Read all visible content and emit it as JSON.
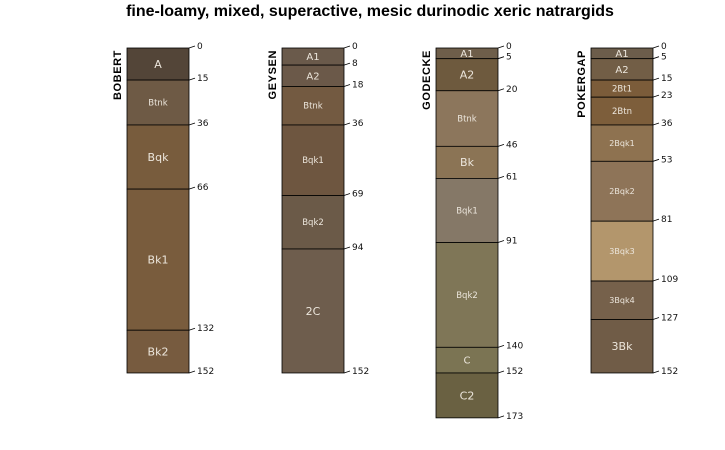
{
  "chart_data": {
    "type": "soil-profile-sketch",
    "title": "fine-loamy, mixed, superactive, mesic durinodic xeric natrargids",
    "depth_units": "cm",
    "depth_range": [
      0,
      173
    ],
    "profiles": [
      {
        "name": "BOBERT",
        "horizons": [
          {
            "name": "A",
            "top": 0,
            "bottom": 15,
            "color": "#534538"
          },
          {
            "name": "Btnk",
            "top": 15,
            "bottom": 36,
            "color": "#6e5a45"
          },
          {
            "name": "Bqk",
            "top": 36,
            "bottom": 66,
            "color": "#785c3d"
          },
          {
            "name": "Bk1",
            "top": 66,
            "bottom": 132,
            "color": "#795c3d"
          },
          {
            "name": "Bk2",
            "top": 132,
            "bottom": 152,
            "color": "#775b3f"
          }
        ]
      },
      {
        "name": "GEYSEN",
        "horizons": [
          {
            "name": "A1",
            "top": 0,
            "bottom": 8,
            "color": "#6a5a4b"
          },
          {
            "name": "A2",
            "top": 8,
            "bottom": 18,
            "color": "#6b5949"
          },
          {
            "name": "Btnk",
            "top": 18,
            "bottom": 36,
            "color": "#735a41"
          },
          {
            "name": "Bqk1",
            "top": 36,
            "bottom": 69,
            "color": "#6e5640"
          },
          {
            "name": "Bqk2",
            "top": 69,
            "bottom": 94,
            "color": "#6b5a48"
          },
          {
            "name": "2C",
            "top": 94,
            "bottom": 152,
            "color": "#6e5d4d"
          }
        ]
      },
      {
        "name": "GODECKE",
        "horizons": [
          {
            "name": "A1",
            "top": 0,
            "bottom": 5,
            "color": "#6e5e4a"
          },
          {
            "name": "A2",
            "top": 5,
            "bottom": 20,
            "color": "#6e5a3e"
          },
          {
            "name": "Btnk",
            "top": 20,
            "bottom": 46,
            "color": "#8c765c"
          },
          {
            "name": "Bk",
            "top": 46,
            "bottom": 61,
            "color": "#8b7455"
          },
          {
            "name": "Bqk1",
            "top": 61,
            "bottom": 91,
            "color": "#857867"
          },
          {
            "name": "Bqk2",
            "top": 91,
            "bottom": 140,
            "color": "#7f7657"
          },
          {
            "name": "C",
            "top": 140,
            "bottom": 152,
            "color": "#7b7453"
          },
          {
            "name": "C2",
            "top": 152,
            "bottom": 173,
            "color": "#6a6142"
          }
        ]
      },
      {
        "name": "POKERGAP",
        "horizons": [
          {
            "name": "A1",
            "top": 0,
            "bottom": 5,
            "color": "#6c5d4b"
          },
          {
            "name": "A2",
            "top": 5,
            "bottom": 15,
            "color": "#725e46"
          },
          {
            "name": "2Bt1",
            "top": 15,
            "bottom": 23,
            "color": "#7b5c3a"
          },
          {
            "name": "2Btn",
            "top": 23,
            "bottom": 36,
            "color": "#7d5e3b"
          },
          {
            "name": "2Bqk1",
            "top": 36,
            "bottom": 53,
            "color": "#8e7250"
          },
          {
            "name": "2Bqk2",
            "top": 53,
            "bottom": 81,
            "color": "#8e7458"
          },
          {
            "name": "3Bqk3",
            "top": 81,
            "bottom": 109,
            "color": "#b3966c"
          },
          {
            "name": "3Bqk4",
            "top": 109,
            "bottom": 127,
            "color": "#76614b"
          },
          {
            "name": "3Bk",
            "top": 127,
            "bottom": 152,
            "color": "#705c47"
          }
        ]
      }
    ]
  }
}
